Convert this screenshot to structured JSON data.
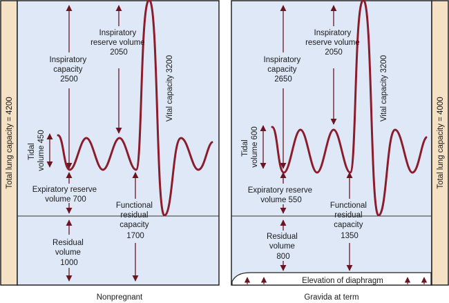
{
  "colors": {
    "panel_fill": "#dfe8f7",
    "bar_fill": "#f5e1c4",
    "wave": "#8b1c2c",
    "arrow": "#6b1522",
    "border": "#222222"
  },
  "nonpregnant": {
    "caption": "Nonpregnant",
    "total_lung_capacity": "Total lung capacity = 4200",
    "inspiratory_capacity": [
      "Inspiratory",
      "capacity",
      "2500"
    ],
    "inspiratory_reserve_volume": [
      "Inspiratory",
      "reserve volume",
      "2050"
    ],
    "vital_capacity": "Vital capacity 3200",
    "tidal_volume": [
      "Tidal",
      "volume 450"
    ],
    "expiratory_reserve_volume": [
      "Expiratory reserve",
      "volume 700"
    ],
    "functional_residual_capacity": [
      "Functional",
      "residual",
      "capacity",
      "1700"
    ],
    "residual_volume": [
      "Residual",
      "volume",
      "1000"
    ]
  },
  "pregnant": {
    "caption": "Gravida at term",
    "total_lung_capacity": "Total lung capacity = 4000",
    "inspiratory_capacity": [
      "Inspiratory",
      "capacity",
      "2650"
    ],
    "inspiratory_reserve_volume": [
      "Inspiratory",
      "reserve volume",
      "2050"
    ],
    "vital_capacity": "Vital capacity 3200",
    "tidal_volume": [
      "Tidal",
      "volume 600"
    ],
    "expiratory_reserve_volume": [
      "Expiratory reserve",
      "volume 550"
    ],
    "functional_residual_capacity": [
      "Functional",
      "residual",
      "capacity",
      "1350"
    ],
    "residual_volume": [
      "Residual",
      "volume",
      "800"
    ],
    "elevation_of_diaphragm": "Elevation of diaphragm"
  }
}
